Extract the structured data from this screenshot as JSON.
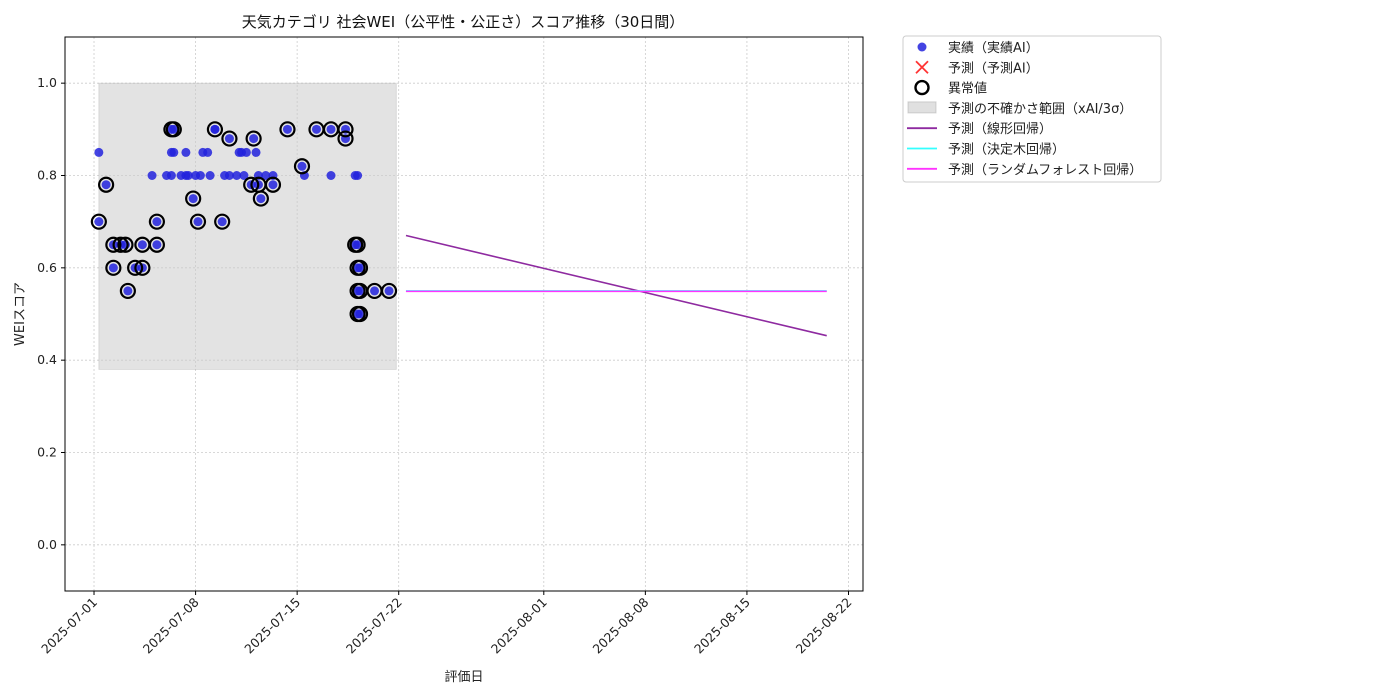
{
  "chart_data": {
    "type": "scatter",
    "title": "天気カテゴリ 社会WEI（公平性・公正さ）スコア推移（30日間）",
    "xlabel": "評価日",
    "ylabel": "WEIスコア",
    "x_range": [
      "2025-06-29",
      "2025-08-23"
    ],
    "ylim": [
      -0.1,
      1.1
    ],
    "y_ticks": [
      0.0,
      0.2,
      0.4,
      0.6,
      0.8,
      1.0
    ],
    "y_tick_labels": [
      "0.0",
      "0.2",
      "0.4",
      "0.6",
      "0.8",
      "1.0"
    ],
    "x_ticks": [
      "2025-07-01",
      "2025-07-08",
      "2025-07-15",
      "2025-07-22",
      "2025-08-01",
      "2025-08-08",
      "2025-08-15",
      "2025-08-22"
    ],
    "grid": true,
    "legend_position": "outside-top-right",
    "colors": {
      "actual": "#2222dd",
      "predicted_ai": "#ff3333",
      "anomaly": "#000000",
      "uncertainty": "#cccccc",
      "linear": "#8e2aa0",
      "tree": "#33ffff",
      "forest": "#ff33ff"
    },
    "legend": [
      {
        "label": "実績（実績AI）",
        "kind": "dot",
        "key": "actual"
      },
      {
        "label": "予測（予測AI）",
        "kind": "x",
        "key": "predicted_ai"
      },
      {
        "label": "異常値",
        "kind": "ring",
        "key": "anomaly"
      },
      {
        "label": "予測の不確かさ範囲（xAI/3σ）",
        "kind": "band",
        "key": "uncertainty"
      },
      {
        "label": "予測（線形回帰）",
        "kind": "line",
        "key": "linear"
      },
      {
        "label": "予測（決定木回帰）",
        "kind": "line",
        "key": "tree"
      },
      {
        "label": "予測（ランダムフォレスト回帰）",
        "kind": "line",
        "key": "forest"
      }
    ],
    "uncertainty_band": {
      "x_start": "2025-07-01 08:00",
      "x_end": "2025-07-21 20:00",
      "y_low": 0.38,
      "y_high": 1.0
    },
    "actual": [
      [
        "2025-07-01 08:00",
        0.7
      ],
      [
        "2025-07-01 08:00",
        0.85
      ],
      [
        "2025-07-01 20:00",
        0.78
      ],
      [
        "2025-07-02 08:00",
        0.65
      ],
      [
        "2025-07-02 08:00",
        0.6
      ],
      [
        "2025-07-02 20:00",
        0.65
      ],
      [
        "2025-07-03 04:00",
        0.65
      ],
      [
        "2025-07-03 08:00",
        0.55
      ],
      [
        "2025-07-03 20:00",
        0.6
      ],
      [
        "2025-07-04 08:00",
        0.6
      ],
      [
        "2025-07-04 08:00",
        0.65
      ],
      [
        "2025-07-05 00:00",
        0.8
      ],
      [
        "2025-07-05 08:00",
        0.7
      ],
      [
        "2025-07-05 08:00",
        0.65
      ],
      [
        "2025-07-06 00:00",
        0.8
      ],
      [
        "2025-07-06 08:00",
        0.85
      ],
      [
        "2025-07-06 08:00",
        0.9
      ],
      [
        "2025-07-06 08:00",
        0.8
      ],
      [
        "2025-07-06 12:00",
        0.85
      ],
      [
        "2025-07-06 12:00",
        0.9
      ],
      [
        "2025-07-07 00:00",
        0.8
      ],
      [
        "2025-07-07 08:00",
        0.85
      ],
      [
        "2025-07-07 08:00",
        0.8
      ],
      [
        "2025-07-07 12:00",
        0.8
      ],
      [
        "2025-07-07 20:00",
        0.75
      ],
      [
        "2025-07-08 00:00",
        0.8
      ],
      [
        "2025-07-08 04:00",
        0.7
      ],
      [
        "2025-07-08 08:00",
        0.8
      ],
      [
        "2025-07-08 12:00",
        0.85
      ],
      [
        "2025-07-08 20:00",
        0.85
      ],
      [
        "2025-07-09 00:00",
        0.8
      ],
      [
        "2025-07-09 08:00",
        0.9
      ],
      [
        "2025-07-09 08:00",
        0.9
      ],
      [
        "2025-07-09 20:00",
        0.7
      ],
      [
        "2025-07-10 00:00",
        0.8
      ],
      [
        "2025-07-10 08:00",
        0.8
      ],
      [
        "2025-07-10 08:00",
        0.88
      ],
      [
        "2025-07-10 20:00",
        0.8
      ],
      [
        "2025-07-11 00:00",
        0.85
      ],
      [
        "2025-07-11 04:00",
        0.85
      ],
      [
        "2025-07-11 08:00",
        0.8
      ],
      [
        "2025-07-11 12:00",
        0.85
      ],
      [
        "2025-07-11 20:00",
        0.78
      ],
      [
        "2025-07-12 00:00",
        0.88
      ],
      [
        "2025-07-12 04:00",
        0.85
      ],
      [
        "2025-07-12 08:00",
        0.8
      ],
      [
        "2025-07-12 08:00",
        0.78
      ],
      [
        "2025-07-12 12:00",
        0.75
      ],
      [
        "2025-07-12 20:00",
        0.8
      ],
      [
        "2025-07-13 08:00",
        0.78
      ],
      [
        "2025-07-13 08:00",
        0.8
      ],
      [
        "2025-07-14 08:00",
        0.9
      ],
      [
        "2025-07-15 08:00",
        0.82
      ],
      [
        "2025-07-15 12:00",
        0.8
      ],
      [
        "2025-07-16 08:00",
        0.9
      ],
      [
        "2025-07-17 08:00",
        0.9
      ],
      [
        "2025-07-17 08:00",
        0.8
      ],
      [
        "2025-07-18 08:00",
        0.9
      ],
      [
        "2025-07-18 08:00",
        0.88
      ],
      [
        "2025-07-19 00:00",
        0.65
      ],
      [
        "2025-07-19 00:00",
        0.8
      ],
      [
        "2025-07-19 04:00",
        0.8
      ],
      [
        "2025-07-19 04:00",
        0.65
      ],
      [
        "2025-07-19 04:00",
        0.6
      ],
      [
        "2025-07-19 04:00",
        0.55
      ],
      [
        "2025-07-19 04:00",
        0.5
      ],
      [
        "2025-07-19 08:00",
        0.6
      ],
      [
        "2025-07-19 08:00",
        0.55
      ],
      [
        "2025-07-19 08:00",
        0.5
      ],
      [
        "2025-07-20 08:00",
        0.55
      ],
      [
        "2025-07-21 08:00",
        0.55
      ]
    ],
    "anomalies": [
      [
        "2025-07-01 08:00",
        0.7
      ],
      [
        "2025-07-01 20:00",
        0.78
      ],
      [
        "2025-07-02 08:00",
        0.65
      ],
      [
        "2025-07-02 08:00",
        0.6
      ],
      [
        "2025-07-02 20:00",
        0.65
      ],
      [
        "2025-07-03 04:00",
        0.65
      ],
      [
        "2025-07-03 08:00",
        0.55
      ],
      [
        "2025-07-03 20:00",
        0.6
      ],
      [
        "2025-07-04 08:00",
        0.6
      ],
      [
        "2025-07-04 08:00",
        0.65
      ],
      [
        "2025-07-05 08:00",
        0.7
      ],
      [
        "2025-07-05 08:00",
        0.65
      ],
      [
        "2025-07-06 08:00",
        0.9
      ],
      [
        "2025-07-06 12:00",
        0.9
      ],
      [
        "2025-07-07 20:00",
        0.75
      ],
      [
        "2025-07-08 04:00",
        0.7
      ],
      [
        "2025-07-09 08:00",
        0.9
      ],
      [
        "2025-07-09 20:00",
        0.7
      ],
      [
        "2025-07-10 08:00",
        0.88
      ],
      [
        "2025-07-11 20:00",
        0.78
      ],
      [
        "2025-07-12 00:00",
        0.88
      ],
      [
        "2025-07-12 08:00",
        0.78
      ],
      [
        "2025-07-12 12:00",
        0.75
      ],
      [
        "2025-07-13 08:00",
        0.78
      ],
      [
        "2025-07-14 08:00",
        0.9
      ],
      [
        "2025-07-15 08:00",
        0.82
      ],
      [
        "2025-07-16 08:00",
        0.9
      ],
      [
        "2025-07-17 08:00",
        0.9
      ],
      [
        "2025-07-18 08:00",
        0.9
      ],
      [
        "2025-07-18 08:00",
        0.88
      ],
      [
        "2025-07-19 00:00",
        0.65
      ],
      [
        "2025-07-19 04:00",
        0.65
      ],
      [
        "2025-07-19 04:00",
        0.6
      ],
      [
        "2025-07-19 04:00",
        0.55
      ],
      [
        "2025-07-19 04:00",
        0.5
      ],
      [
        "2025-07-19 08:00",
        0.6
      ],
      [
        "2025-07-19 08:00",
        0.55
      ],
      [
        "2025-07-19 08:00",
        0.5
      ],
      [
        "2025-07-20 08:00",
        0.55
      ],
      [
        "2025-07-21 08:00",
        0.55
      ]
    ],
    "series": [
      {
        "name": "予測（線形回帰）",
        "key": "linear",
        "points": [
          [
            "2025-07-22 12:00",
            0.67
          ],
          [
            "2025-08-20 12:00",
            0.453
          ]
        ]
      },
      {
        "name": "予測（決定木回帰）",
        "key": "tree",
        "points": [
          [
            "2025-07-22 12:00",
            0.55
          ],
          [
            "2025-08-20 12:00",
            0.55
          ]
        ]
      },
      {
        "name": "予測（ランダムフォレスト回帰）",
        "key": "forest",
        "points": [
          [
            "2025-07-22 12:00",
            0.549
          ],
          [
            "2025-08-20 12:00",
            0.549
          ]
        ]
      }
    ]
  }
}
